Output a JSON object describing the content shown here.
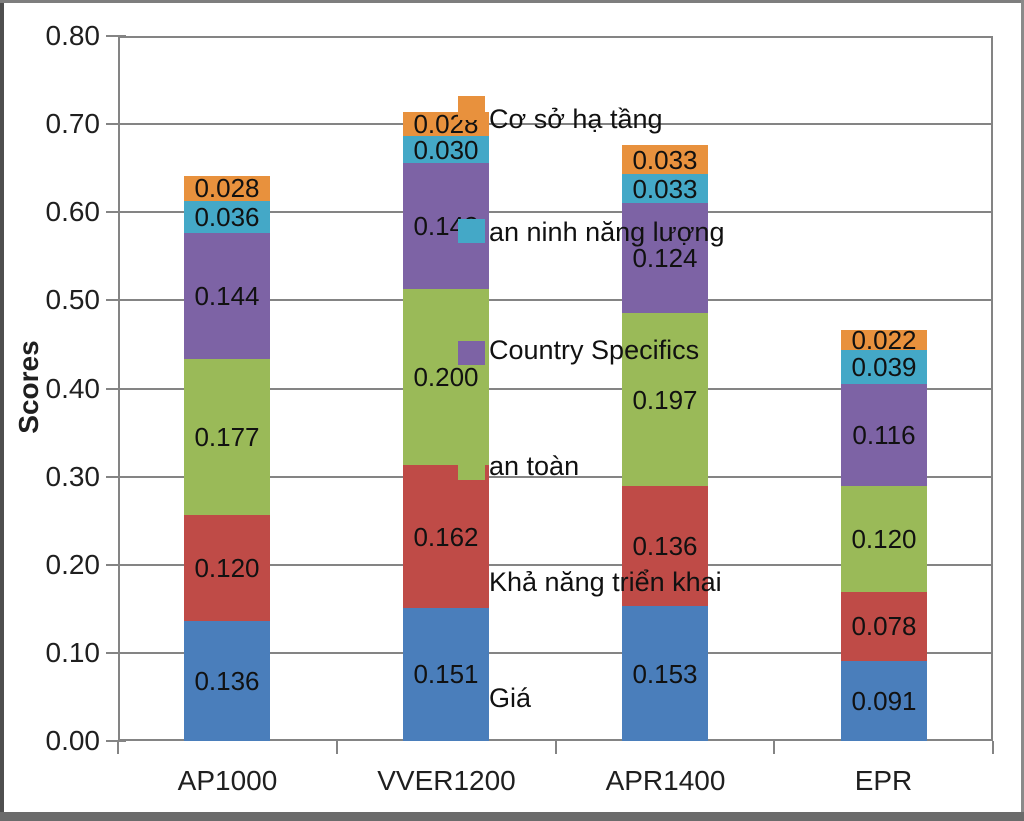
{
  "chart_data": {
    "type": "bar",
    "stacked": true,
    "title": "",
    "ylabel": "Scores",
    "xlabel": "",
    "ylim": [
      0,
      0.8
    ],
    "ytick_step": 0.1,
    "ytick_labels": [
      "0.00",
      "0.10",
      "0.20",
      "0.30",
      "0.40",
      "0.50",
      "0.60",
      "0.70",
      "0.80"
    ],
    "grid": true,
    "categories": [
      "AP1000",
      "VVER1200",
      "APR1400",
      "EPR"
    ],
    "series": [
      {
        "name": "Giá",
        "color": "#4a7ebb",
        "values": [
          0.136,
          0.151,
          0.153,
          0.091
        ]
      },
      {
        "name": "Khả năng triển khai",
        "color": "#bf4b47",
        "values": [
          0.12,
          0.162,
          0.136,
          0.078
        ]
      },
      {
        "name": "an toàn",
        "color": "#9aba58",
        "values": [
          0.177,
          0.2,
          0.197,
          0.12
        ]
      },
      {
        "name": "Country Specifics",
        "color": "#7d63a5",
        "values": [
          0.144,
          0.143,
          0.124,
          0.116
        ]
      },
      {
        "name": "an ninh năng lượng",
        "color": "#44a8c7",
        "values": [
          0.036,
          0.03,
          0.033,
          0.039
        ]
      },
      {
        "name": "Cơ sở hạ tầng",
        "color": "#e8913d",
        "values": [
          0.028,
          0.028,
          0.033,
          0.022
        ]
      }
    ],
    "legend": {
      "position": "overlay-center",
      "entries": [
        "Cơ sở hạ tầng",
        "an ninh năng lượng",
        "Country Specifics",
        "an toàn",
        "Khả năng triển khai",
        "Giá"
      ]
    },
    "value_label_format": "3-decimals",
    "axis_color": "#848484",
    "label_color": "#111111"
  }
}
